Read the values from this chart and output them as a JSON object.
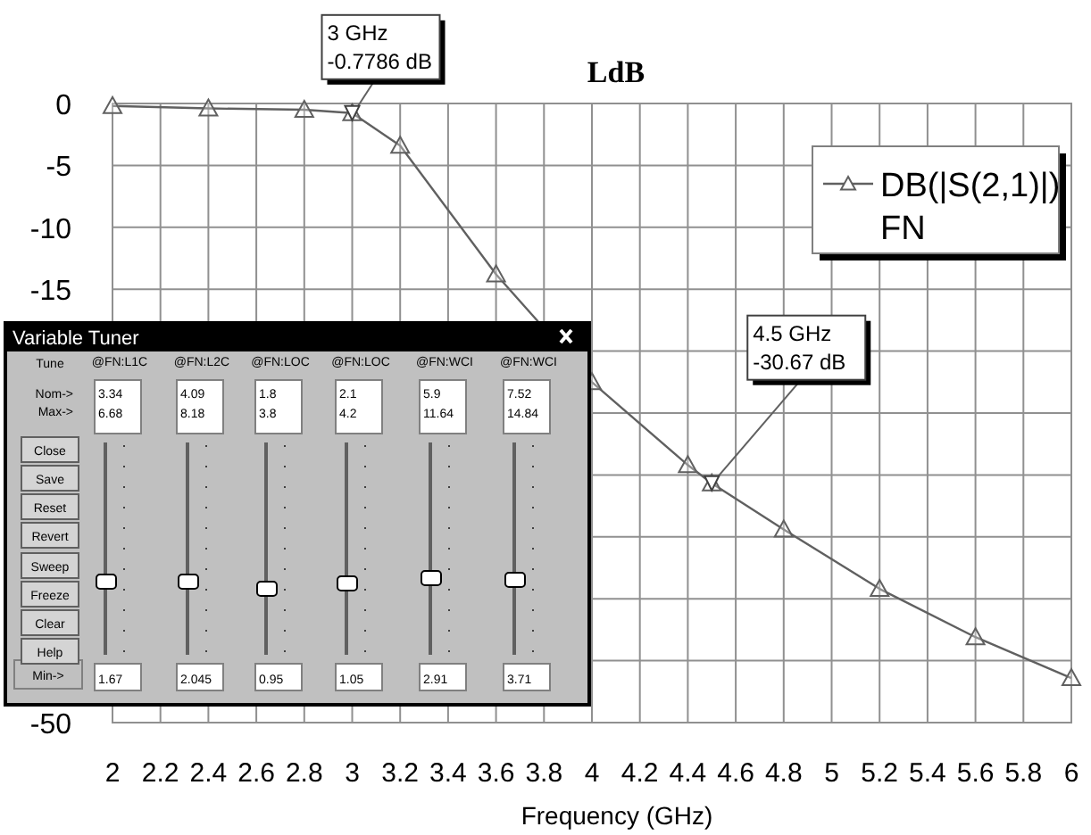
{
  "chart_data": {
    "type": "line",
    "title": "LdB",
    "xlabel": "Frequency (GHz)",
    "x": [
      2,
      2.4,
      2.8,
      3,
      3.2,
      3.6,
      4,
      4.4,
      4.5,
      4.8,
      5.2,
      5.6,
      6
    ],
    "series": [
      {
        "name": "DB(|S(2,1)|) FN",
        "color": "#606060",
        "values": [
          -0.2,
          -0.4,
          -0.5,
          -0.7786,
          -3.4,
          -13.8,
          -22.5,
          -29.2,
          -30.67,
          -34.4,
          -39.2,
          -43.1,
          -46.4
        ]
      }
    ],
    "xlim": [
      2,
      6
    ],
    "xticks": [
      2,
      2.2,
      2.4,
      2.6,
      2.8,
      3,
      3.2,
      3.4,
      3.6,
      3.8,
      4,
      4.2,
      4.4,
      4.6,
      4.8,
      5,
      5.2,
      5.4,
      5.6,
      5.8,
      6
    ],
    "ylim": [
      -50,
      0
    ],
    "yticks": [
      0,
      -5,
      -10,
      -15,
      {
        "value": -20,
        "label": null
      },
      {
        "value": -25,
        "label": null
      },
      {
        "value": -30,
        "label": null
      },
      {
        "value": -35,
        "label": null
      },
      {
        "value": -40,
        "label": null
      },
      {
        "value": -45,
        "label": null
      },
      -50
    ],
    "grid": true,
    "legend": "top right",
    "marker": "triangle",
    "line_style": "solid",
    "annotations": [
      {
        "text": "3 GHz -0.7786 dB",
        "x": 3,
        "y": -0.7786
      },
      {
        "text": "4.5 GHz -30.67 dB",
        "x": 4.5,
        "y": -30.67
      },
      "Variable Tuner",
      "Tune",
      "Nom->",
      "Max->",
      "Min->",
      "Close",
      "Save",
      "Reset",
      "Revert",
      "Sweep",
      "Freeze",
      "Clear",
      "Help",
      "@FN:L1C",
      "@FN:L2C",
      "@FN:LOC",
      "@FN:LOC",
      "@FN:WCI",
      "@FN:WCI",
      "3.34",
      "6.68",
      "4.09",
      "8.18",
      "1.8",
      "3.8",
      "2.1",
      "4.2",
      "5.9",
      "11.64",
      "7.52",
      "14.84",
      "1.67",
      "2.045",
      "0.95",
      "1.05",
      "2.91",
      "3.71"
    ]
  }
}
